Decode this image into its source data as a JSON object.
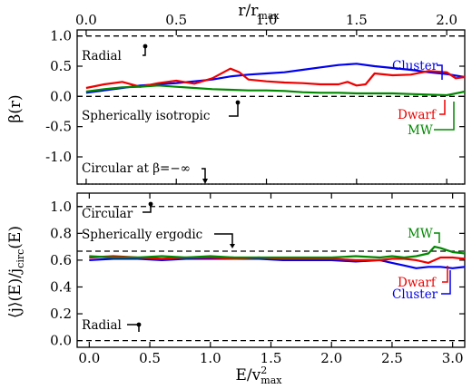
{
  "chart_data": [
    {
      "type": "line",
      "panel": "top",
      "xlabel_top": "r/r",
      "xlabel_top_sub": "max",
      "ylabel": "β(r)",
      "xlim": [
        -0.05,
        2.1
      ],
      "ylim": [
        -1.45,
        1.1
      ],
      "xticks": [
        0.0,
        0.5,
        1.0,
        1.5,
        2.0
      ],
      "xtick_labels": [
        "0.0",
        "0.5",
        "1.0",
        "1.5",
        "2.0"
      ],
      "yticks": [
        1.0,
        0.5,
        0.0,
        -0.5,
        -1.0
      ],
      "ytick_labels": [
        "1.0",
        "0.5",
        "0.0",
        "-0.5",
        "-1.0"
      ],
      "reference_lines": [
        {
          "y": 1.0,
          "label": "Radial",
          "marker_x": 0.47
        },
        {
          "y": 0.0,
          "label": "Spherically isotropic",
          "marker_x": 0.84
        },
        {
          "y": -1.45,
          "label": "Circular at β=−∞",
          "marker_x": 0.66,
          "style": "dotted"
        }
      ],
      "series": [
        {
          "name": "Cluster",
          "color": "#0000ee",
          "x": [
            0.0,
            0.1,
            0.2,
            0.3,
            0.4,
            0.5,
            0.6,
            0.7,
            0.8,
            0.9,
            1.0,
            1.1,
            1.2,
            1.3,
            1.4,
            1.5,
            1.6,
            1.7,
            1.8,
            1.9,
            2.0,
            2.1
          ],
          "y": [
            0.06,
            0.1,
            0.14,
            0.18,
            0.2,
            0.22,
            0.25,
            0.28,
            0.33,
            0.36,
            0.38,
            0.4,
            0.44,
            0.48,
            0.52,
            0.54,
            0.5,
            0.47,
            0.44,
            0.4,
            0.37,
            0.32
          ]
        },
        {
          "name": "Dwarf",
          "color": "#ee0000",
          "x": [
            0.0,
            0.1,
            0.2,
            0.3,
            0.4,
            0.5,
            0.6,
            0.7,
            0.8,
            0.85,
            0.9,
            1.0,
            1.1,
            1.2,
            1.3,
            1.4,
            1.45,
            1.5,
            1.55,
            1.6,
            1.7,
            1.8,
            1.9,
            2.0,
            2.05,
            2.1
          ],
          "y": [
            0.14,
            0.2,
            0.24,
            0.16,
            0.22,
            0.26,
            0.21,
            0.3,
            0.46,
            0.4,
            0.28,
            0.25,
            0.23,
            0.22,
            0.2,
            0.2,
            0.24,
            0.18,
            0.2,
            0.38,
            0.35,
            0.36,
            0.42,
            0.4,
            0.3,
            0.32
          ]
        },
        {
          "name": "MW",
          "color": "#008800",
          "x": [
            0.0,
            0.1,
            0.2,
            0.3,
            0.4,
            0.5,
            0.6,
            0.7,
            0.8,
            0.9,
            1.0,
            1.1,
            1.2,
            1.3,
            1.4,
            1.5,
            1.6,
            1.7,
            1.8,
            1.9,
            2.0,
            2.1
          ],
          "y": [
            0.08,
            0.12,
            0.15,
            0.16,
            0.18,
            0.16,
            0.14,
            0.12,
            0.11,
            0.1,
            0.1,
            0.09,
            0.07,
            0.06,
            0.06,
            0.05,
            0.05,
            0.05,
            0.04,
            0.03,
            0.02,
            0.08
          ]
        }
      ],
      "labels": [
        {
          "text": "Cluster",
          "series": "Cluster"
        },
        {
          "text": "Dwarf",
          "series": "Dwarf"
        },
        {
          "text": "MW",
          "series": "MW"
        }
      ]
    },
    {
      "type": "line",
      "panel": "bottom",
      "xlabel": "E/v",
      "xlabel_sup": "2",
      "xlabel_sub": "max",
      "ylabel": "⟨j⟩(E)/j",
      "ylabel_sub": "circ",
      "ylabel_tail": "(E)",
      "xlim": [
        -0.1,
        3.1
      ],
      "ylim": [
        -0.05,
        1.1
      ],
      "xticks": [
        0.0,
        0.5,
        1.0,
        1.5,
        2.0,
        2.5,
        3.0
      ],
      "xtick_labels": [
        "0.0",
        "0.5",
        "1.0",
        "1.5",
        "2.0",
        "2.5",
        "3.0"
      ],
      "yticks": [
        0.0,
        0.2,
        0.4,
        0.6,
        0.8,
        1.0
      ],
      "ytick_labels": [
        "0.0",
        "0.2",
        "0.4",
        "0.6",
        "0.8",
        "1.0"
      ],
      "reference_lines": [
        {
          "y": 1.0,
          "label": "Circular",
          "marker_x": 0.5
        },
        {
          "y": 0.667,
          "label": "Spherically ergodic",
          "marker_x": 1.25
        },
        {
          "y": 0.0,
          "label": "Radial",
          "marker_x": 0.5
        }
      ],
      "series": [
        {
          "name": "Cluster",
          "color": "#0000ee",
          "x": [
            0.0,
            0.2,
            0.4,
            0.6,
            0.8,
            1.0,
            1.2,
            1.4,
            1.6,
            1.8,
            2.0,
            2.2,
            2.4,
            2.5,
            2.6,
            2.7,
            2.8,
            2.9,
            3.0,
            3.1
          ],
          "y": [
            0.6,
            0.61,
            0.61,
            0.6,
            0.61,
            0.61,
            0.61,
            0.61,
            0.6,
            0.6,
            0.6,
            0.59,
            0.6,
            0.58,
            0.56,
            0.54,
            0.55,
            0.55,
            0.54,
            0.55
          ]
        },
        {
          "name": "Dwarf",
          "color": "#ee0000",
          "x": [
            0.0,
            0.2,
            0.4,
            0.6,
            0.8,
            1.0,
            1.2,
            1.4,
            1.6,
            1.8,
            2.0,
            2.2,
            2.4,
            2.5,
            2.6,
            2.7,
            2.8,
            2.9,
            3.0,
            3.1
          ],
          "y": [
            0.62,
            0.63,
            0.62,
            0.61,
            0.62,
            0.62,
            0.61,
            0.62,
            0.61,
            0.61,
            0.61,
            0.6,
            0.6,
            0.61,
            0.61,
            0.6,
            0.58,
            0.62,
            0.62,
            0.61
          ]
        },
        {
          "name": "MW",
          "color": "#008800",
          "x": [
            0.0,
            0.2,
            0.4,
            0.6,
            0.8,
            1.0,
            1.2,
            1.4,
            1.6,
            1.8,
            2.0,
            2.2,
            2.4,
            2.5,
            2.6,
            2.7,
            2.8,
            2.85,
            2.9,
            3.0,
            3.1
          ],
          "y": [
            0.63,
            0.62,
            0.62,
            0.63,
            0.62,
            0.63,
            0.62,
            0.62,
            0.62,
            0.62,
            0.62,
            0.63,
            0.62,
            0.63,
            0.62,
            0.63,
            0.65,
            0.7,
            0.69,
            0.66,
            0.65
          ]
        }
      ],
      "labels": [
        {
          "text": "MW",
          "series": "MW"
        },
        {
          "text": "Dwarf",
          "series": "Dwarf"
        },
        {
          "text": "Cluster",
          "series": "Cluster"
        }
      ]
    }
  ]
}
